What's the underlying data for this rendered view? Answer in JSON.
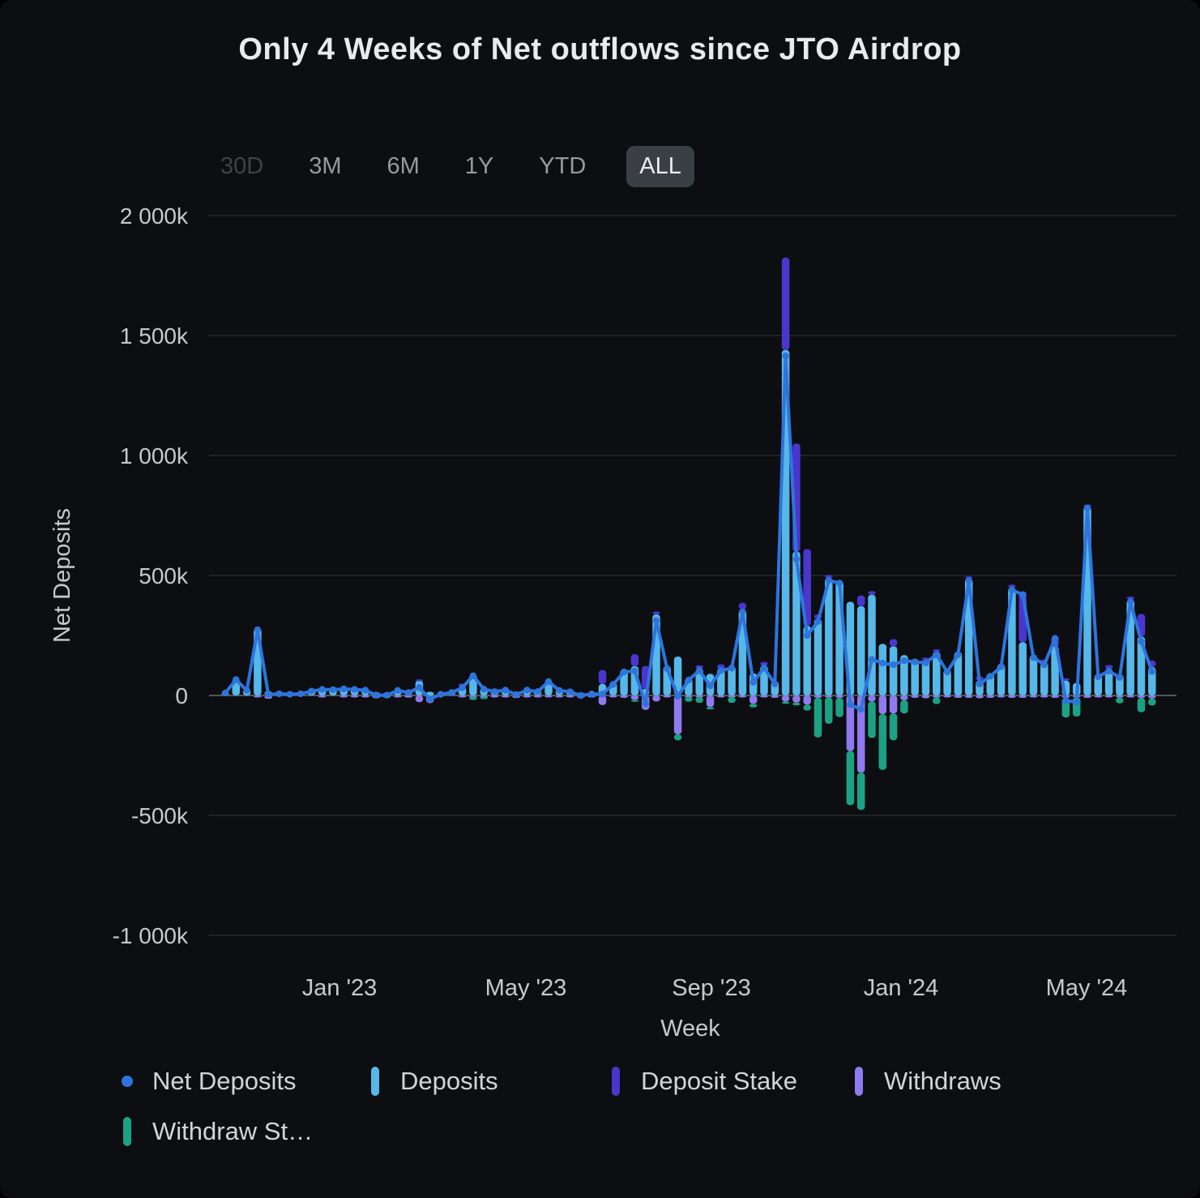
{
  "title": "Only 4 Weeks of Net outflows since JTO Airdrop",
  "range_selector": {
    "options": [
      {
        "label": "30D",
        "state": "disabled"
      },
      {
        "label": "3M",
        "state": "normal"
      },
      {
        "label": "6M",
        "state": "normal"
      },
      {
        "label": "1Y",
        "state": "normal"
      },
      {
        "label": "YTD",
        "state": "normal"
      },
      {
        "label": "ALL",
        "state": "active"
      }
    ]
  },
  "legend": {
    "items": [
      {
        "label": "Net Deposits",
        "marker": "dot",
        "color": "#2d75dd"
      },
      {
        "label": "Deposits",
        "marker": "bar",
        "color": "#56b7e9"
      },
      {
        "label": "Deposit Stake",
        "marker": "bar",
        "color": "#4a36cd"
      },
      {
        "label": "Withdraws",
        "marker": "bar",
        "color": "#8f7af0"
      },
      {
        "label": "Withdraw St…",
        "marker": "bar",
        "color": "#1da184"
      }
    ]
  },
  "chart_data": {
    "type": "bar",
    "subtype": "stacked bars (weekly) with net line overlay",
    "title": "Only 4 Weeks of Net outflows since JTO Airdrop",
    "xlabel": "Week",
    "ylabel": "Net Deposits",
    "values_unit": "thousands (k)",
    "ylim": [
      -1000,
      2000
    ],
    "grid": true,
    "legend_position": "bottom",
    "y_ticks": [
      {
        "label": "2 000k",
        "value": 2000
      },
      {
        "label": "1 500k",
        "value": 1500
      },
      {
        "label": "1 000k",
        "value": 1000
      },
      {
        "label": "500k",
        "value": 500
      },
      {
        "label": "0",
        "value": 0
      },
      {
        "label": "-500k",
        "value": -500
      },
      {
        "label": "-1 000k",
        "value": -1000
      }
    ],
    "x_ticks": [
      "Jan '23",
      "May '23",
      "Sep '23",
      "Jan '24",
      "May '24"
    ],
    "x": [
      "2022-10-30",
      "2022-11-06",
      "2022-11-13",
      "2022-11-20",
      "2022-11-27",
      "2022-12-04",
      "2022-12-11",
      "2022-12-18",
      "2022-12-25",
      "2023-01-01",
      "2023-01-08",
      "2023-01-15",
      "2023-01-22",
      "2023-01-29",
      "2023-02-05",
      "2023-02-12",
      "2023-02-19",
      "2023-02-26",
      "2023-03-05",
      "2023-03-12",
      "2023-03-19",
      "2023-03-26",
      "2023-04-02",
      "2023-04-09",
      "2023-04-16",
      "2023-04-23",
      "2023-04-30",
      "2023-05-07",
      "2023-05-14",
      "2023-05-21",
      "2023-05-28",
      "2023-06-04",
      "2023-06-11",
      "2023-06-18",
      "2023-06-25",
      "2023-07-02",
      "2023-07-09",
      "2023-07-16",
      "2023-07-23",
      "2023-07-30",
      "2023-08-06",
      "2023-08-13",
      "2023-08-20",
      "2023-08-27",
      "2023-09-03",
      "2023-09-10",
      "2023-09-17",
      "2023-09-24",
      "2023-10-01",
      "2023-10-08",
      "2023-10-15",
      "2023-10-22",
      "2023-10-29",
      "2023-11-05",
      "2023-11-12",
      "2023-11-19",
      "2023-11-26",
      "2023-12-03",
      "2023-12-10",
      "2023-12-17",
      "2023-12-24",
      "2023-12-31",
      "2024-01-07",
      "2024-01-14",
      "2024-01-21",
      "2024-01-28",
      "2024-02-04",
      "2024-02-11",
      "2024-02-18",
      "2024-02-25",
      "2024-03-03",
      "2024-03-10",
      "2024-03-17",
      "2024-03-24",
      "2024-03-31",
      "2024-04-07",
      "2024-04-14",
      "2024-04-21",
      "2024-04-28",
      "2024-05-05",
      "2024-05-12",
      "2024-05-19",
      "2024-05-26",
      "2024-06-02",
      "2024-06-09",
      "2024-06-16",
      "2024-06-23"
    ],
    "series": [
      {
        "name": "Net Deposits",
        "type": "line",
        "color": "#2d75dd",
        "values": [
          10,
          66,
          21,
          274,
          4,
          7,
          5,
          7,
          18,
          25,
          24,
          27,
          25,
          22,
          1,
          1,
          21,
          12,
          33,
          -15,
          5,
          12,
          32,
          82,
          26,
          16,
          22,
          4,
          22,
          16,
          58,
          21,
          15,
          0,
          6,
          6,
          46,
          98,
          102,
          -35,
          312,
          112,
          -3,
          64,
          104,
          40,
          104,
          114,
          348,
          55,
          115,
          48,
          1415,
          568,
          250,
          308,
          480,
          468,
          -38,
          -58,
          150,
          135,
          128,
          145,
          140,
          136,
          170,
          98,
          170,
          478,
          48,
          80,
          120,
          440,
          420,
          158,
          128,
          238,
          -22,
          -28,
          780,
          78,
          102,
          75,
          390,
          225,
          100
        ]
      },
      {
        "name": "Deposits",
        "type": "bar",
        "stack": "deposit",
        "color": "#56b7e9",
        "values": [
          12,
          70,
          25,
          280,
          18,
          10,
          8,
          10,
          22,
          30,
          28,
          32,
          30,
          28,
          14,
          12,
          26,
          22,
          62,
          15,
          8,
          16,
          36,
          88,
          32,
          20,
          26,
          16,
          26,
          20,
          64,
          26,
          20,
          12,
          10,
          48,
          55,
          108,
          122,
          28,
          338,
          122,
          162,
          72,
          112,
          90,
          112,
          122,
          358,
          92,
          125,
          60,
          1440,
          600,
          290,
          320,
          490,
          478,
          390,
          372,
          420,
          215,
          205,
          168,
          152,
          150,
          182,
          108,
          182,
          488,
          62,
          92,
          132,
          450,
          222,
          168,
          138,
          205,
          62,
          52,
          788,
          88,
          112,
          88,
          400,
          245,
          118
        ]
      },
      {
        "name": "Deposit Stake",
        "type": "bar",
        "stack": "deposit",
        "color": "#4a36cd",
        "values": [
          0,
          0,
          0,
          0,
          0,
          0,
          0,
          0,
          0,
          0,
          0,
          0,
          0,
          0,
          0,
          0,
          0,
          0,
          5,
          0,
          0,
          0,
          14,
          0,
          0,
          0,
          0,
          0,
          0,
          0,
          0,
          0,
          6,
          0,
          0,
          58,
          0,
          0,
          50,
          95,
          12,
          0,
          0,
          0,
          14,
          0,
          18,
          0,
          28,
          0,
          15,
          0,
          385,
          450,
          320,
          18,
          12,
          0,
          0,
          45,
          15,
          0,
          30,
          0,
          0,
          8,
          10,
          0,
          0,
          8,
          18,
          0,
          0,
          12,
          212,
          0,
          12,
          42,
          10,
          0,
          8,
          0,
          15,
          0,
          12,
          95,
          28
        ]
      },
      {
        "name": "Withdraws",
        "type": "bar",
        "stack": "withdraw",
        "color": "#8f7af0",
        "values": [
          -2,
          -3,
          -3,
          -5,
          -14,
          -3,
          -2,
          -2,
          -3,
          -4,
          -3,
          -4,
          -4,
          -5,
          -12,
          -10,
          -4,
          -9,
          -28,
          -32,
          -3,
          -3,
          -4,
          -5,
          -5,
          -4,
          -4,
          -11,
          -4,
          -4,
          -5,
          -4,
          -5,
          -11,
          -4,
          -40,
          -8,
          -10,
          -18,
          -60,
          -25,
          -8,
          -162,
          -6,
          -6,
          -48,
          -6,
          -6,
          -8,
          -35,
          -8,
          -10,
          -25,
          -30,
          -38,
          -10,
          -8,
          -10,
          -232,
          -322,
          -25,
          -78,
          -75,
          -20,
          -10,
          -12,
          -8,
          -8,
          -10,
          -10,
          -12,
          -10,
          -8,
          -10,
          -10,
          -8,
          -8,
          -10,
          -10,
          -8,
          -10,
          -8,
          -6,
          -8,
          -8,
          -10,
          -12
        ]
      },
      {
        "name": "Withdraw Stake",
        "type": "bar",
        "stack": "withdraw",
        "color": "#1da184",
        "values": [
          0,
          0,
          0,
          0,
          0,
          0,
          0,
          0,
          0,
          0,
          0,
          0,
          0,
          0,
          0,
          0,
          0,
          0,
          0,
          -3,
          0,
          0,
          0,
          -14,
          -10,
          0,
          0,
          0,
          0,
          0,
          0,
          0,
          0,
          0,
          0,
          0,
          0,
          0,
          -5,
          0,
          0,
          0,
          -25,
          -20,
          -25,
          -10,
          0,
          -25,
          0,
          -15,
          0,
          0,
          -10,
          -12,
          -25,
          -165,
          -110,
          -80,
          -225,
          -155,
          -152,
          -232,
          -112,
          -55,
          0,
          0,
          -28,
          0,
          0,
          0,
          0,
          0,
          0,
          0,
          0,
          0,
          0,
          0,
          -82,
          -80,
          0,
          0,
          0,
          -25,
          0,
          -60,
          -30
        ]
      }
    ],
    "annotations": {
      "net_outflow_weeks_since_airdrop": [
        "2023-12-10",
        "2023-12-17",
        "2024-05-05",
        "2024-05-12"
      ]
    }
  },
  "style_colors": {
    "background": "#0d0e11",
    "grid_line": "#26282d",
    "zero_line": "#6a6d73",
    "axis_text": "#c7c9cc",
    "title_text": "#e9eaec"
  }
}
